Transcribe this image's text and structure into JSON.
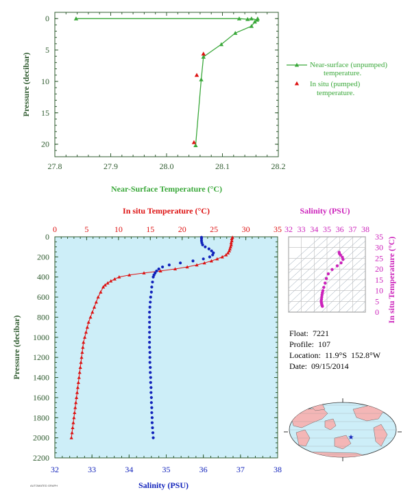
{
  "colors": {
    "green": "#3aa83a",
    "dark_green": "#2e5a2e",
    "red": "#dd1111",
    "blue": "#1122bb",
    "magenta": "#cc22bb",
    "panel_bg": "#cdeef8",
    "land": "#f4b6b6",
    "ocean": "#cdeef8"
  },
  "info": {
    "float": "Float:  7221",
    "profile": "Profile:  107",
    "location": "Location:  11.9°S  152.8°W",
    "date": "Date:  09/15/2014"
  },
  "footnote": "AUTOMATED GRAPH",
  "chart_data": [
    {
      "type": "line",
      "xlabel": "Near-Surface Temperature (°C)",
      "ylabel": "Pressure (decibar)",
      "xlim": [
        27.8,
        28.2
      ],
      "ylim": [
        22,
        -1
      ],
      "xticks": [
        "27.8",
        "27.9",
        "28.0",
        "28.1",
        "28.2"
      ],
      "yticks": [
        "0",
        "5",
        "10",
        "15",
        "20"
      ],
      "series": [
        {
          "name": "Near-surface (unpumped) temperature.",
          "marker": "triangle",
          "color": "#3aa83a",
          "points": [
            [
              27.838,
              0.0
            ],
            [
              28.13,
              0.0
            ],
            [
              28.145,
              0.1
            ],
            [
              28.152,
              0.0
            ],
            [
              28.162,
              0.2
            ],
            [
              28.163,
              0.0
            ],
            [
              28.158,
              0.5
            ],
            [
              28.152,
              1.2
            ],
            [
              28.123,
              2.3
            ],
            [
              28.098,
              4.1
            ],
            [
              28.066,
              6.1
            ],
            [
              28.062,
              9.7
            ],
            [
              28.052,
              20.2
            ]
          ]
        },
        {
          "name": "In situ (pumped) temperature.",
          "marker": "triangle",
          "color": "#dd1111",
          "points": [
            [
              28.066,
              5.6
            ],
            [
              28.054,
              9.0
            ],
            [
              28.049,
              19.7
            ]
          ]
        }
      ]
    },
    {
      "type": "line",
      "title_top": "In situ Temperature (°C)",
      "xlabel_bottom": "Salinity (PSU)",
      "ylabel": "Pressure (decibar)",
      "temperature_xlim": [
        0,
        35
      ],
      "salinity_xlim": [
        32,
        38
      ],
      "ylim": [
        2200,
        0
      ],
      "temperature_ticks": [
        "0",
        "5",
        "10",
        "15",
        "20",
        "25",
        "30",
        "35"
      ],
      "salinity_ticks": [
        "32",
        "33",
        "34",
        "35",
        "36",
        "37",
        "38"
      ],
      "pressure_ticks": [
        "0",
        "200",
        "400",
        "600",
        "800",
        "1000",
        "1200",
        "1400",
        "1600",
        "1800",
        "2000",
        "2200"
      ],
      "series": [
        {
          "name": "In situ Temperature",
          "axis": "temperature",
          "color": "#dd1111",
          "marker": "triangle",
          "points": [
            [
              27.9,
              5
            ],
            [
              27.8,
              20
            ],
            [
              27.8,
              40
            ],
            [
              27.7,
              60
            ],
            [
              27.7,
              80
            ],
            [
              27.6,
              100
            ],
            [
              27.5,
              120
            ],
            [
              27.4,
              140
            ],
            [
              27.2,
              160
            ],
            [
              26.9,
              180
            ],
            [
              26.3,
              200
            ],
            [
              25.5,
              220
            ],
            [
              24.6,
              240
            ],
            [
              23.5,
              260
            ],
            [
              22.3,
              280
            ],
            [
              20.8,
              300
            ],
            [
              18.9,
              320
            ],
            [
              16.6,
              340
            ],
            [
              14.0,
              360
            ],
            [
              11.7,
              380
            ],
            [
              10.1,
              400
            ],
            [
              9.4,
              420
            ],
            [
              8.8,
              440
            ],
            [
              8.3,
              460
            ],
            [
              7.9,
              480
            ],
            [
              7.6,
              500
            ],
            [
              7.2,
              550
            ],
            [
              6.8,
              600
            ],
            [
              6.5,
              650
            ],
            [
              6.2,
              700
            ],
            [
              5.9,
              750
            ],
            [
              5.6,
              800
            ],
            [
              5.3,
              850
            ],
            [
              5.1,
              900
            ],
            [
              4.9,
              950
            ],
            [
              4.7,
              1000
            ],
            [
              4.5,
              1050
            ],
            [
              4.4,
              1100
            ],
            [
              4.3,
              1150
            ],
            [
              4.2,
              1200
            ],
            [
              4.1,
              1250
            ],
            [
              4.0,
              1300
            ],
            [
              3.9,
              1350
            ],
            [
              3.8,
              1400
            ],
            [
              3.7,
              1450
            ],
            [
              3.6,
              1500
            ],
            [
              3.5,
              1550
            ],
            [
              3.4,
              1600
            ],
            [
              3.3,
              1650
            ],
            [
              3.2,
              1700
            ],
            [
              3.1,
              1750
            ],
            [
              3.0,
              1800
            ],
            [
              2.9,
              1850
            ],
            [
              2.8,
              1900
            ],
            [
              2.7,
              1950
            ],
            [
              2.6,
              2000
            ]
          ]
        },
        {
          "name": "Salinity",
          "axis": "salinity",
          "color": "#1122bb",
          "marker": "circle",
          "points": [
            [
              35.95,
              5
            ],
            [
              35.95,
              20
            ],
            [
              35.95,
              40
            ],
            [
              35.96,
              60
            ],
            [
              35.98,
              80
            ],
            [
              36.05,
              100
            ],
            [
              36.15,
              120
            ],
            [
              36.22,
              140
            ],
            [
              36.27,
              160
            ],
            [
              36.25,
              180
            ],
            [
              36.17,
              200
            ],
            [
              36.0,
              220
            ],
            [
              35.72,
              240
            ],
            [
              35.38,
              260
            ],
            [
              35.08,
              280
            ],
            [
              34.9,
              300
            ],
            [
              34.8,
              320
            ],
            [
              34.74,
              340
            ],
            [
              34.7,
              360
            ],
            [
              34.67,
              380
            ],
            [
              34.65,
              400
            ],
            [
              34.63,
              450
            ],
            [
              34.61,
              500
            ],
            [
              34.6,
              550
            ],
            [
              34.58,
              600
            ],
            [
              34.57,
              650
            ],
            [
              34.56,
              700
            ],
            [
              34.55,
              750
            ],
            [
              34.55,
              800
            ],
            [
              34.55,
              850
            ],
            [
              34.55,
              900
            ],
            [
              34.55,
              950
            ],
            [
              34.55,
              1000
            ],
            [
              34.55,
              1050
            ],
            [
              34.55,
              1100
            ],
            [
              34.56,
              1150
            ],
            [
              34.56,
              1200
            ],
            [
              34.56,
              1250
            ],
            [
              34.57,
              1300
            ],
            [
              34.57,
              1350
            ],
            [
              34.58,
              1400
            ],
            [
              34.58,
              1450
            ],
            [
              34.59,
              1500
            ],
            [
              34.59,
              1550
            ],
            [
              34.6,
              1600
            ],
            [
              34.6,
              1650
            ],
            [
              34.61,
              1700
            ],
            [
              34.61,
              1750
            ],
            [
              34.62,
              1800
            ],
            [
              34.62,
              1850
            ],
            [
              34.63,
              1900
            ],
            [
              34.64,
              1950
            ],
            [
              34.65,
              2000
            ]
          ]
        }
      ]
    },
    {
      "type": "scatter",
      "title_top": "Salinity (PSU)",
      "ylabel_right": "In situ Temperature (°C)",
      "xlim": [
        32,
        38
      ],
      "ylim": [
        0,
        35
      ],
      "xticks": [
        "32",
        "33",
        "34",
        "35",
        "36",
        "37",
        "38"
      ],
      "yticks": [
        "0",
        "5",
        "10",
        "15",
        "20",
        "25",
        "30",
        "35"
      ],
      "series": [
        {
          "name": "T-S",
          "color": "#cc22bb",
          "points": [
            [
              35.95,
              27.8
            ],
            [
              35.97,
              27.2
            ],
            [
              36.06,
              26.5
            ],
            [
              36.2,
              25.5
            ],
            [
              36.25,
              24.5
            ],
            [
              36.1,
              22.9
            ],
            [
              35.8,
              21.5
            ],
            [
              35.4,
              19.8
            ],
            [
              35.1,
              17.8
            ],
            [
              34.95,
              15.6
            ],
            [
              34.85,
              13.5
            ],
            [
              34.75,
              11.5
            ],
            [
              34.68,
              10.0
            ],
            [
              34.64,
              9.0
            ],
            [
              34.61,
              8.0
            ],
            [
              34.59,
              7.0
            ],
            [
              34.57,
              6.0
            ],
            [
              34.55,
              5.2
            ],
            [
              34.56,
              4.5
            ],
            [
              34.58,
              3.9
            ],
            [
              34.6,
              3.4
            ],
            [
              34.62,
              3.0
            ],
            [
              34.64,
              2.7
            ]
          ]
        }
      ]
    }
  ]
}
